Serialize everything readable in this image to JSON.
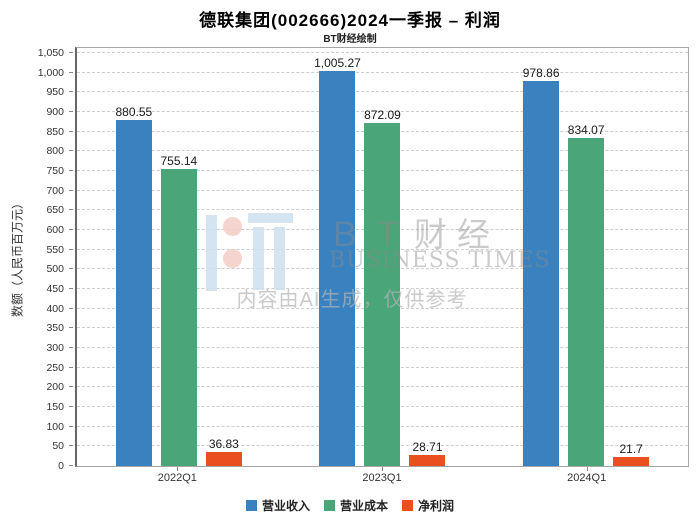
{
  "page": {
    "title": "德联集团(002666)2024一季报 – 利润",
    "subtitle": "BT财经绘制"
  },
  "watermark": {
    "logo_icon": "bt-logo",
    "brand_cjk": "ＢＴ财经",
    "brand_en": "BUSINESS TIMES",
    "disclaimer": "内容由AI生成，仅供参考"
  },
  "chart_data": {
    "type": "bar",
    "title": "德联集团(002666)2024一季报 – 利润",
    "subtitle": "BT财经绘制",
    "categories": [
      "2022Q1",
      "2023Q1",
      "2024Q1"
    ],
    "series": [
      {
        "key": "revenue",
        "name": "营业收入",
        "color": "#3982bf",
        "values": [
          880.55,
          1005.27,
          978.86
        ],
        "labels": [
          "880.55",
          "1,005.27",
          "978.86"
        ]
      },
      {
        "key": "cost",
        "name": "营业成本",
        "color": "#4aa578",
        "values": [
          755.14,
          872.09,
          834.07
        ],
        "labels": [
          "755.14",
          "872.09",
          "834.07"
        ]
      },
      {
        "key": "net-profit",
        "name": "净利润",
        "color": "#ea4f20",
        "values": [
          36.83,
          28.71,
          21.7
        ],
        "labels": [
          "36.83",
          "28.71",
          "21.7"
        ]
      }
    ],
    "xlabel": "",
    "ylabel": "数额（人民币百万元）",
    "ylim": [
      0,
      1050
    ],
    "ytick_step": 50,
    "grid": "horizontal-dashed",
    "legend_position": "bottom"
  },
  "colors": {
    "grid": "#cdcdcd",
    "plot_border": "#a6a6a6",
    "axis": "#666666",
    "tick_text": "#333333"
  }
}
